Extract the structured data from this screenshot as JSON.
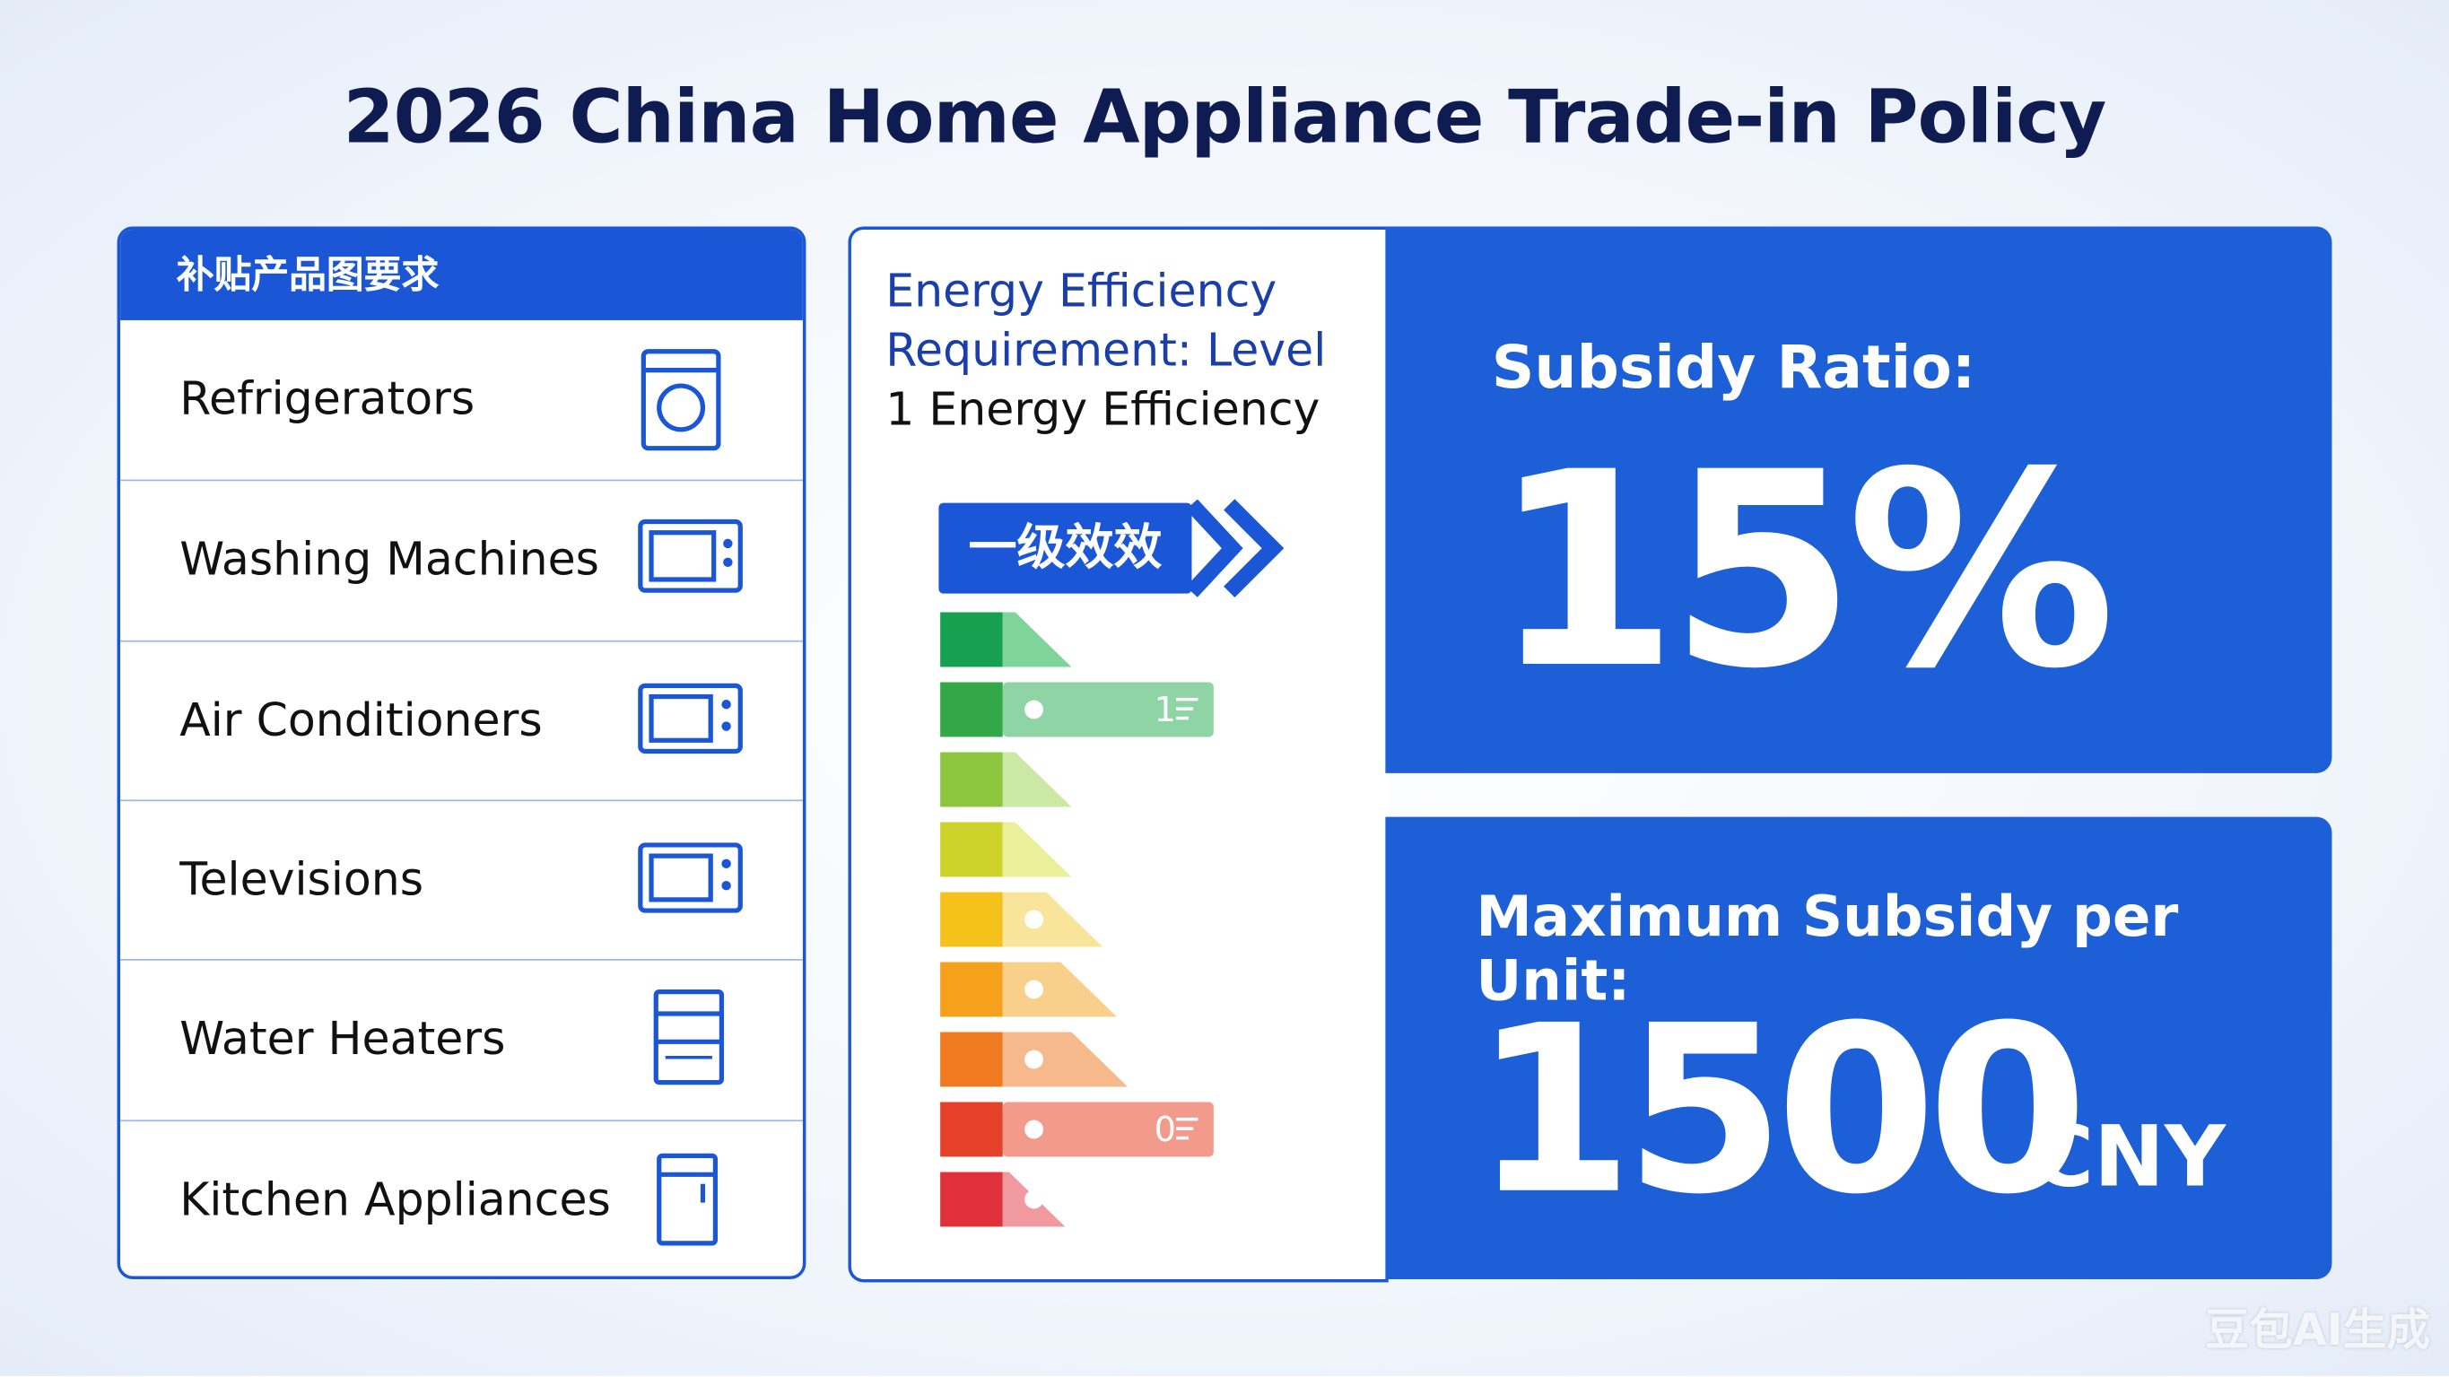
{
  "header": {
    "title": "2026 China Home Appliance Trade-in Policy"
  },
  "product_panel": {
    "heading": "补贴产品图要求",
    "items": [
      "Refrigerators",
      "Washing Machines",
      "Air Conditioners",
      "Televisions",
      "Water Heaters",
      "Kitchen Appliances"
    ]
  },
  "efficiency_panel": {
    "lines": [
      "Energy Efficiency",
      "Requirement: Level",
      "1 Energy Efficiency"
    ],
    "badge": "一级效效",
    "bar_labels": [
      "1",
      "0"
    ]
  },
  "subsidy_ratio": {
    "label": "Subsidy Ratio:",
    "value": "15%"
  },
  "max_subsidy": {
    "label": "Maximum Subsidy per Unit:",
    "value": "1500",
    "unit": "CNY"
  },
  "watermark": "豆包AI生成"
}
